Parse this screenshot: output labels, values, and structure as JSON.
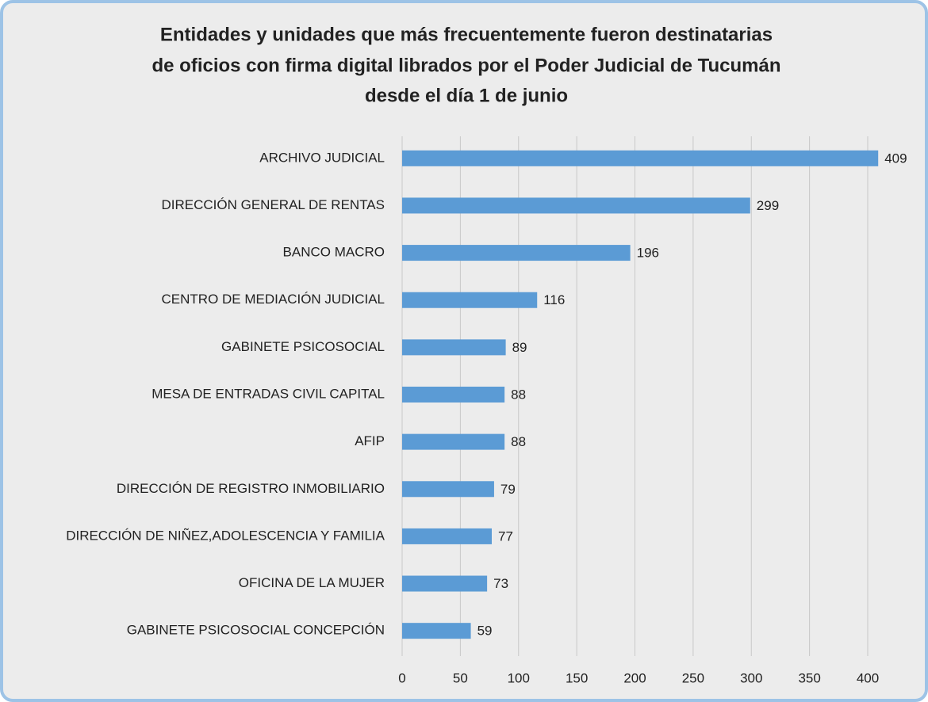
{
  "chart_data": {
    "type": "bar",
    "orientation": "horizontal",
    "title": [
      "Entidades y unidades que más frecuentemente fueron destinatarias",
      "de oficios con firma digital librados por el Poder Judicial de Tucumán",
      "desde el día 1 de junio"
    ],
    "categories": [
      "ARCHIVO JUDICIAL",
      "DIRECCIÓN GENERAL DE RENTAS",
      "BANCO MACRO",
      "CENTRO DE MEDIACIÓN JUDICIAL",
      "GABINETE PSICOSOCIAL",
      "MESA DE ENTRADAS CIVIL CAPITAL",
      "AFIP",
      "DIRECCIÓN DE REGISTRO INMOBILIARIO",
      "DIRECCIÓN DE NIÑEZ,ADOLESCENCIA Y FAMILIA",
      "OFICINA DE LA MUJER",
      "GABINETE PSICOSOCIAL CONCEPCIÓN"
    ],
    "values": [
      409,
      299,
      196,
      116,
      89,
      88,
      88,
      79,
      77,
      73,
      59
    ],
    "color": "#5b9bd5",
    "xlim": [
      0,
      420
    ],
    "xticks": [
      0,
      50,
      100,
      150,
      200,
      250,
      300,
      350,
      400
    ],
    "grid": true
  }
}
